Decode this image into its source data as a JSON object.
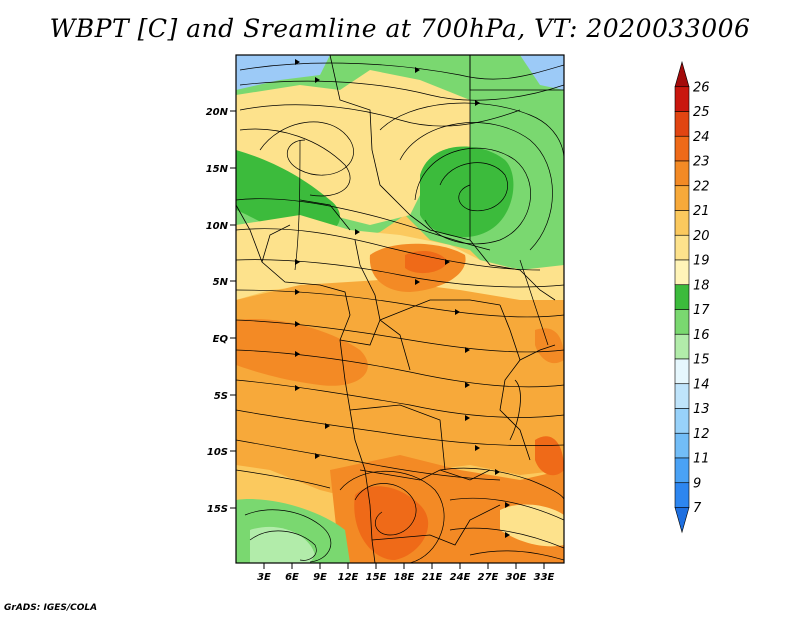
{
  "title": "WBPT [C] and Sreamline at 700hPa, VT: 2020033006",
  "credit": "GrADS: IGES/COLA",
  "lat_labels": [
    "20N",
    "15N",
    "10N",
    "5N",
    "EQ",
    "5S",
    "10S",
    "15S"
  ],
  "lon_labels": [
    "3E",
    "6E",
    "9E",
    "12E",
    "15E",
    "18E",
    "21E",
    "24E",
    "27E",
    "30E",
    "33E"
  ],
  "colorbar": {
    "labels": [
      "7",
      "9",
      "11",
      "12",
      "13",
      "14",
      "15",
      "16",
      "17",
      "18",
      "19",
      "20",
      "21",
      "22",
      "23",
      "24",
      "25",
      "26"
    ],
    "colors": [
      "#1e6fe0",
      "#2d86f0",
      "#4aa2f5",
      "#72bdf7",
      "#98d2fa",
      "#bfe4fb",
      "#e6f7fd",
      "#b2ecaa",
      "#7ad870",
      "#3cbb3c",
      "#fff4b8",
      "#fde28c",
      "#fbc95e",
      "#f7a93a",
      "#f38a25",
      "#ef6a18",
      "#e14512",
      "#c9170e",
      "#a30b0b"
    ]
  },
  "palette": {
    "blue": "#9ccaf7",
    "green_light": "#b2ecaa",
    "green": "#7ad870",
    "green_dark": "#3cbb3c",
    "yellow": "#fde28c",
    "orange_light": "#fbc95e",
    "orange": "#f7a93a",
    "orange_dark": "#f38a25",
    "red": "#ef6a18"
  }
}
